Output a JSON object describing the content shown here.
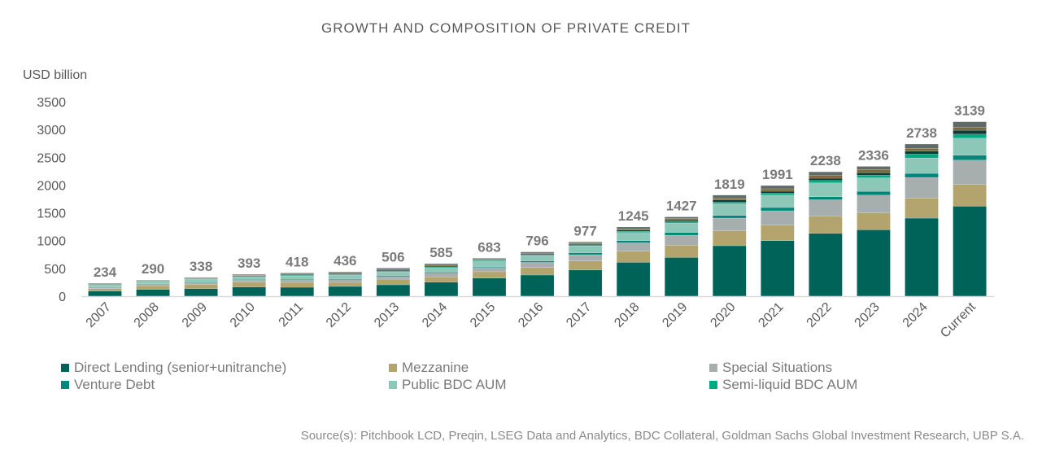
{
  "chart_data": {
    "type": "bar",
    "stacked": true,
    "title": "GROWTH AND COMPOSITION OF PRIVATE CREDIT",
    "ylabel": "USD billion",
    "xlabel": "",
    "ylim": [
      0,
      3500
    ],
    "yticks": [
      0,
      500,
      1000,
      1500,
      2000,
      2500,
      3000,
      3500
    ],
    "grid": false,
    "legend_position": "bottom",
    "categories": [
      "2007",
      "2008",
      "2009",
      "2010",
      "2011",
      "2012",
      "2013",
      "2014",
      "2015",
      "2016",
      "2017",
      "2018",
      "2019",
      "2020",
      "2021",
      "2022",
      "2023",
      "2024",
      "Current"
    ],
    "totals": [
      234,
      290,
      338,
      393,
      418,
      436,
      506,
      585,
      683,
      796,
      977,
      1245,
      1427,
      1819,
      1991,
      2238,
      2336,
      2738,
      3139
    ],
    "series": [
      {
        "name": "Direct Lending (senior+unitranche)",
        "color": "#00635a",
        "values": [
          92,
          122,
          137,
          166,
          161,
          176,
          205,
          254,
          327,
          381,
          473,
          610,
          698,
          908,
          1000,
          1132,
          1196,
          1405,
          1620
        ]
      },
      {
        "name": "Mezzanine",
        "color": "#b3a36c",
        "values": [
          44,
          63,
          78,
          88,
          88,
          73,
          102,
          93,
          113,
          136,
          161,
          200,
          220,
          268,
          278,
          307,
          301,
          356,
          390
        ]
      },
      {
        "name": "Special Situations",
        "color": "#a7aeae",
        "values": [
          29,
          29,
          39,
          34,
          39,
          49,
          44,
          63,
          78,
          92,
          113,
          151,
          180,
          230,
          259,
          297,
          322,
          376,
          439
        ]
      },
      {
        "name": "Venture Debt",
        "color": "#00877a",
        "values": [
          8,
          10,
          10,
          12,
          15,
          15,
          15,
          15,
          15,
          25,
          34,
          39,
          49,
          48,
          59,
          54,
          68,
          73,
          88
        ]
      },
      {
        "name": "Public BDC AUM",
        "color": "#8cc7b7",
        "values": [
          34,
          39,
          39,
          49,
          63,
          68,
          73,
          83,
          102,
          98,
          127,
          146,
          171,
          210,
          224,
          249,
          244,
          278,
          307
        ]
      },
      {
        "name": "Semi-liquid BDC AUM",
        "color": "#00ab84",
        "values": [
          6,
          6,
          8,
          10,
          12,
          12,
          15,
          17,
          12,
          15,
          18,
          22,
          25,
          29,
          34,
          44,
          48,
          69,
          73
        ]
      },
      {
        "color": "#0e3a33",
        "values": [
          6,
          6,
          8,
          10,
          10,
          14,
          14,
          16,
          12,
          14,
          15,
          22,
          24,
          40,
          35,
          40,
          44,
          53,
          69
        ]
      },
      {
        "color": "#7a6a3c",
        "values": [
          6,
          6,
          8,
          10,
          12,
          12,
          16,
          18,
          10,
          15,
          16,
          25,
          28,
          34,
          44,
          48,
          58,
          50,
          54
        ]
      },
      {
        "color": "#5f6b68",
        "values": [
          9,
          9,
          11,
          14,
          18,
          17,
          22,
          26,
          14,
          20,
          20,
          30,
          32,
          52,
          58,
          67,
          55,
          78,
          99
        ]
      }
    ]
  },
  "source": "Source(s): Pitchbook LCD, Preqin, LSEG Data and Analytics, BDC Collateral, Goldman Sachs Global Investment Research, UBP S.A."
}
